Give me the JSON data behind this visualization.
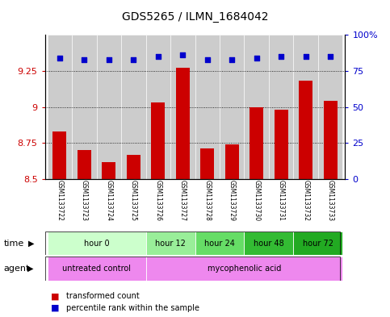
{
  "title": "GDS5265 / ILMN_1684042",
  "samples": [
    "GSM1133722",
    "GSM1133723",
    "GSM1133724",
    "GSM1133725",
    "GSM1133726",
    "GSM1133727",
    "GSM1133728",
    "GSM1133729",
    "GSM1133730",
    "GSM1133731",
    "GSM1133732",
    "GSM1133733"
  ],
  "bar_values": [
    8.83,
    8.7,
    8.62,
    8.67,
    9.03,
    9.27,
    8.71,
    8.74,
    9.0,
    8.98,
    9.18,
    9.04
  ],
  "percentile_values": [
    84,
    83,
    83,
    83,
    85,
    86,
    83,
    83,
    84,
    85,
    85,
    85
  ],
  "bar_color": "#cc0000",
  "percentile_color": "#0000cc",
  "ymin": 8.5,
  "ymax": 9.5,
  "yticks": [
    8.5,
    8.75,
    9.0,
    9.25
  ],
  "ytick_labels": [
    "8.5",
    "8.75",
    "9",
    "9.25"
  ],
  "y2min": 0,
  "y2max": 100,
  "y2ticks": [
    0,
    25,
    50,
    75,
    100
  ],
  "y2tick_labels": [
    "0",
    "25",
    "50",
    "75",
    "100%"
  ],
  "time_groups": [
    {
      "label": "hour 0",
      "start": 0,
      "end": 4,
      "color": "#ccffcc"
    },
    {
      "label": "hour 12",
      "start": 4,
      "end": 6,
      "color": "#99ee99"
    },
    {
      "label": "hour 24",
      "start": 6,
      "end": 8,
      "color": "#66dd66"
    },
    {
      "label": "hour 48",
      "start": 8,
      "end": 10,
      "color": "#33bb33"
    },
    {
      "label": "hour 72",
      "start": 10,
      "end": 12,
      "color": "#22aa22"
    }
  ],
  "agent_groups": [
    {
      "label": "untreated control",
      "start": 0,
      "end": 4,
      "color": "#ee88ee"
    },
    {
      "label": "mycophenolic acid",
      "start": 4,
      "end": 12,
      "color": "#ee88ee"
    }
  ],
  "legend_bar_label": "transformed count",
  "legend_pct_label": "percentile rank within the sample"
}
